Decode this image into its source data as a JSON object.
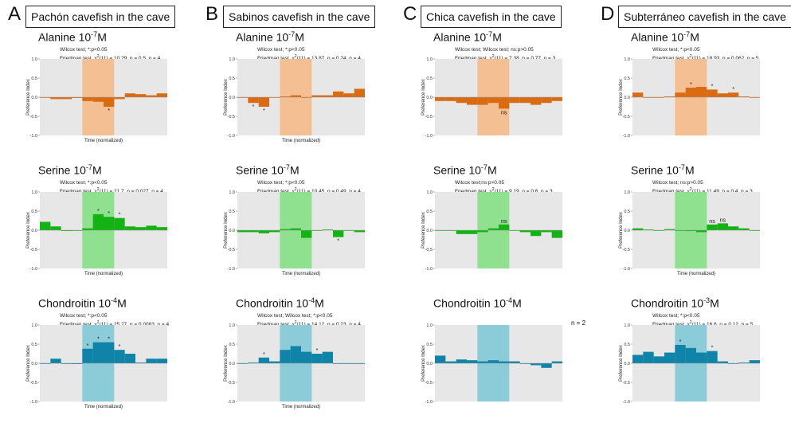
{
  "colors": {
    "alanine": "#d96b12",
    "serine": "#15b215",
    "chondroitin": "#0f83a8",
    "highlight_alanine": "#f5bf94",
    "highlight_serine": "#8fe08f",
    "highlight_chondroitin": "#8cccd8",
    "panel_bg": "#e7e7e7",
    "zero_line": "#999999"
  },
  "columns": [
    {
      "letter": "A",
      "title": "Pachón cavefish in the cave",
      "panels": [
        {
          "substance": "alanine",
          "title_name": "Alanine 10",
          "title_exp": "-7",
          "title_unit": "M",
          "stats_line_1": "Wilcox test; *:p<0.05",
          "stats_line_2_pre": "Friedman test, χ",
          "stats_line_2_sup": "2",
          "stats_line_2_post": "(11) = 10.29, p = 0.5, n = 4",
          "n_note": "",
          "chart_data": {
            "type": "bar",
            "xlabel": "Time (normalized)",
            "ylabel": "Preference Index",
            "ylim": [
              -1.0,
              1.0
            ],
            "yticks": [
              "1.0",
              "0.5",
              "0.0",
              "-0.5",
              "-1.0"
            ],
            "highlight_bins": [
              4,
              7
            ],
            "values": [
              0.0,
              -0.05,
              -0.05,
              -0.02,
              -0.1,
              -0.12,
              -0.25,
              -0.05,
              0.1,
              0.08,
              0.05,
              0.1
            ],
            "labels": [
              "",
              "",
              "",
              "",
              "",
              "",
              "*",
              "",
              "",
              "",
              "",
              ""
            ]
          }
        },
        {
          "substance": "serine",
          "title_name": "Serine 10",
          "title_exp": "-7",
          "title_unit": "M",
          "stats_line_1": "Wilcox test; *:p<0.05",
          "stats_line_2_pre": "Friedman test, χ",
          "stats_line_2_sup": "2",
          "stats_line_2_post": "(11) = 21.7, p = 0.027, n = 4",
          "n_note": "",
          "chart_data": {
            "type": "bar",
            "xlabel": "Time (normalized)",
            "ylabel": "Preference Index",
            "ylim": [
              -1.0,
              1.0
            ],
            "yticks": [
              "1.0",
              "0.5",
              "0.0",
              "-0.5",
              "-1.0"
            ],
            "highlight_bins": [
              4,
              7
            ],
            "values": [
              0.22,
              0.1,
              -0.02,
              0.0,
              0.05,
              0.42,
              0.35,
              0.32,
              0.1,
              0.08,
              0.12,
              0.08
            ],
            "labels": [
              "",
              "",
              "",
              "",
              "",
              "*",
              "*",
              "*",
              "",
              "",
              "",
              ""
            ]
          }
        },
        {
          "substance": "chondroitin",
          "title_name": "Chondroitin 10",
          "title_exp": "-4",
          "title_unit": "M",
          "stats_line_1": "Wilcox test; *:p<0.05",
          "stats_line_2_pre": "Friedman test, χ",
          "stats_line_2_sup": "2",
          "stats_line_2_post": "(11) = 25.27, p = 0.0083, n = 4",
          "n_note": "",
          "chart_data": {
            "type": "bar",
            "xlabel": "Time (normalized)",
            "ylabel": "Preference Index",
            "ylim": [
              -1.0,
              1.0
            ],
            "yticks": [
              "1.0",
              "0.5",
              "0.0",
              "-0.5",
              "-1.0"
            ],
            "highlight_bins": [
              4,
              7
            ],
            "values": [
              0.0,
              0.12,
              0.0,
              -0.02,
              0.38,
              0.55,
              0.55,
              0.35,
              0.25,
              0.02,
              0.12,
              0.12
            ],
            "labels": [
              "",
              "",
              "",
              "",
              "*",
              "*",
              "*",
              "*",
              "",
              "",
              "",
              ""
            ]
          }
        }
      ]
    },
    {
      "letter": "B",
      "title": "Sabinos cavefish in the cave",
      "panels": [
        {
          "substance": "alanine",
          "title_name": "Alanine 10",
          "title_exp": "-7",
          "title_unit": "M",
          "stats_line_1": "Wilcox test; *:p<0.05",
          "stats_line_2_pre": "Friedman test, χ",
          "stats_line_2_sup": "2",
          "stats_line_2_post": "(11) = 13.87, p = 0.24, n = 4",
          "n_note": "",
          "chart_data": {
            "type": "bar",
            "xlabel": "Time (normalized)",
            "ylabel": "Preference Index",
            "ylim": [
              -1.0,
              1.0
            ],
            "yticks": [
              "1.0",
              "0.5",
              "0.0",
              "-0.5",
              "-1.0"
            ],
            "highlight_bins": [
              4,
              7
            ],
            "values": [
              0.0,
              -0.15,
              -0.25,
              0.0,
              0.02,
              0.05,
              0.0,
              0.05,
              0.05,
              0.15,
              0.1,
              0.22
            ],
            "labels": [
              "",
              "*",
              "*",
              "",
              "",
              "",
              "",
              "",
              "",
              "",
              "",
              ""
            ]
          }
        },
        {
          "substance": "serine",
          "title_name": "Serine 10",
          "title_exp": "-7",
          "title_unit": "M",
          "stats_line_1": "Wilcox test; *:p<0.05",
          "stats_line_2_pre": "Friedman test, χ",
          "stats_line_2_sup": "2",
          "stats_line_2_post": "(11) = 10.45, p = 0.49, n = 4",
          "n_note": "",
          "chart_data": {
            "type": "bar",
            "xlabel": "Time (normalized)",
            "ylabel": "Preference Index",
            "ylim": [
              -1.0,
              1.0
            ],
            "yticks": [
              "1.0",
              "0.5",
              "0.0",
              "-0.5",
              "-1.0"
            ],
            "highlight_bins": [
              4,
              7
            ],
            "values": [
              -0.05,
              -0.05,
              -0.08,
              -0.05,
              0.03,
              0.05,
              -0.2,
              0.0,
              0.02,
              -0.18,
              0.0,
              -0.05
            ],
            "labels": [
              "",
              "",
              "",
              "",
              "",
              "",
              "",
              "",
              "",
              "*",
              "",
              ""
            ]
          }
        },
        {
          "substance": "chondroitin",
          "title_name": "Chondroitin 10",
          "title_exp": "-4",
          "title_unit": "M",
          "stats_line_1": "Wilcox test; Wilcox test; *:p<0.05",
          "stats_line_2_pre": "Friedman test, χ",
          "stats_line_2_sup": "2",
          "stats_line_2_post": "(11) = 14.12, p = 0.23, n = 4",
          "n_note": "",
          "chart_data": {
            "type": "bar",
            "xlabel": "Time (normalized)",
            "ylabel": "Preference Index",
            "ylim": [
              -1.0,
              1.0
            ],
            "yticks": [
              "1.0",
              "0.5",
              "0.0",
              "-0.5",
              "-1.0"
            ],
            "highlight_bins": [
              4,
              7
            ],
            "values": [
              0.0,
              0.02,
              0.15,
              0.05,
              0.35,
              0.45,
              0.3,
              0.25,
              0.3,
              0.0,
              0.0,
              0.0
            ],
            "labels": [
              "",
              "",
              "*",
              "",
              "",
              "",
              "",
              "*",
              "",
              "",
              "",
              ""
            ]
          }
        }
      ]
    },
    {
      "letter": "C",
      "title": "Chica cavefish in the cave",
      "panels": [
        {
          "substance": "alanine",
          "title_name": "Alanine 10",
          "title_exp": "-7",
          "title_unit": "M",
          "stats_line_1": "Wilcox test; Wilcox test; ns:p>0.05",
          "stats_line_2_pre": "Friedman test, χ",
          "stats_line_2_sup": "2",
          "stats_line_2_post": "(11) = 7.38, p = 0.77, n = 3",
          "n_note": "",
          "chart_data": {
            "type": "bar",
            "xlabel": "",
            "ylabel": "Preference Index",
            "ylim": [
              -1.0,
              1.0
            ],
            "yticks": [
              "1.0",
              "0.5",
              "0.0",
              "-0.5",
              "-1.0"
            ],
            "highlight_bins": [
              4,
              7
            ],
            "values": [
              -0.1,
              -0.1,
              -0.15,
              -0.2,
              -0.2,
              -0.15,
              -0.3,
              -0.15,
              -0.15,
              -0.2,
              -0.15,
              -0.1
            ],
            "labels": [
              "",
              "",
              "",
              "",
              "",
              "",
              "ns",
              "",
              "",
              "",
              "",
              ""
            ]
          }
        },
        {
          "substance": "serine",
          "title_name": "Serine 10",
          "title_exp": "-7",
          "title_unit": "M",
          "stats_line_1": "Wilcox test;ns:p>0.05",
          "stats_line_2_pre": "Friedman test, χ",
          "stats_line_2_sup": "2",
          "stats_line_2_post": "(11) = 9.19, p = 0.6, n = 3",
          "n_note": "",
          "chart_data": {
            "type": "bar",
            "xlabel": "",
            "ylabel": "Preference Index",
            "ylim": [
              -1.0,
              1.0
            ],
            "yticks": [
              "1.0",
              "0.5",
              "0.0",
              "-0.5",
              "-1.0"
            ],
            "highlight_bins": [
              4,
              7
            ],
            "values": [
              0.0,
              0.0,
              -0.1,
              -0.1,
              -0.05,
              0.05,
              0.15,
              0.0,
              -0.05,
              -0.15,
              -0.05,
              -0.2
            ],
            "labels": [
              "",
              "",
              "",
              "",
              "",
              "",
              "ns",
              "",
              "",
              "",
              "",
              ""
            ]
          }
        },
        {
          "substance": "chondroitin",
          "title_name": "Chondroitin 10",
          "title_exp": "-4",
          "title_unit": "M",
          "stats_line_1": "",
          "stats_line_2_pre": "",
          "stats_line_2_sup": "",
          "stats_line_2_post": "",
          "n_note": "n = 2",
          "chart_data": {
            "type": "bar",
            "xlabel": "",
            "ylabel": "Preference Index",
            "ylim": [
              -1.0,
              1.0
            ],
            "yticks": [
              "1.0",
              "0.5",
              "0.0",
              "-0.5",
              "-1.0"
            ],
            "highlight_bins": [
              4,
              7
            ],
            "values": [
              0.2,
              0.05,
              0.1,
              0.08,
              0.05,
              0.08,
              0.05,
              0.05,
              0.0,
              -0.05,
              -0.12,
              0.05
            ],
            "labels": [
              "",
              "",
              "",
              "",
              "",
              "",
              "",
              "",
              "",
              "",
              "",
              ""
            ]
          }
        }
      ]
    },
    {
      "letter": "D",
      "title": "Subterráneo cavefish in the cave",
      "panels": [
        {
          "substance": "alanine",
          "title_name": "Alanine 10",
          "title_exp": "-7",
          "title_unit": "M",
          "stats_line_1": "Wilcox test; *:p<0.05",
          "stats_line_2_pre": "Friedman test, χ",
          "stats_line_2_sup": "2",
          "stats_line_2_post": "(11) = 18.93, p = 0.062, n = 5",
          "n_note": "",
          "chart_data": {
            "type": "bar",
            "xlabel": "",
            "ylabel": "Preference Index",
            "ylim": [
              -1.0,
              1.0
            ],
            "yticks": [
              "1.0",
              "0.5",
              "0.0",
              "-0.5",
              "-1.0"
            ],
            "highlight_bins": [
              4,
              7
            ],
            "values": [
              0.12,
              0.0,
              0.0,
              0.02,
              0.12,
              0.25,
              0.27,
              0.2,
              0.1,
              0.12,
              0.02,
              0.0
            ],
            "labels": [
              "",
              "",
              "",
              "",
              "",
              "*",
              "",
              "*",
              "",
              "*",
              "",
              ""
            ]
          }
        },
        {
          "substance": "serine",
          "title_name": "Serine 10",
          "title_exp": "-7",
          "title_unit": "M",
          "stats_line_1": "Wilcox test; ns:p>0.05",
          "stats_line_2_pre": "Friedman test, χ",
          "stats_line_2_sup": "2",
          "stats_line_2_post": "(11) = 11.49, p = 0.4, n = 3",
          "n_note": "",
          "chart_data": {
            "type": "bar",
            "xlabel": "Time (normalized)",
            "ylabel": "Preference Index",
            "ylim": [
              -1.0,
              1.0
            ],
            "yticks": [
              "1.0",
              "0.5",
              "0.0",
              "-0.5",
              "-1.0"
            ],
            "highlight_bins": [
              4,
              7
            ],
            "values": [
              0.05,
              0.02,
              0.0,
              0.03,
              0.0,
              -0.02,
              -0.05,
              0.15,
              0.18,
              0.1,
              0.05,
              0.0
            ],
            "labels": [
              "",
              "",
              "",
              "",
              "",
              "",
              "",
              "ns",
              "ns",
              "",
              "",
              ""
            ]
          }
        },
        {
          "substance": "chondroitin",
          "title_name": "Chondroitin 10",
          "title_exp": "-3",
          "title_unit": "M",
          "stats_line_1": "Wilcox test; *:p<0.05",
          "stats_line_2_pre": "Friedman test, χ",
          "stats_line_2_sup": "2",
          "stats_line_2_post": "(11) = 16.6, p = 0.12, n = 5",
          "n_note": "",
          "chart_data": {
            "type": "bar",
            "xlabel": "",
            "ylabel": "Preference Index",
            "ylim": [
              -1.0,
              1.0
            ],
            "yticks": [
              "1.0",
              "0.5",
              "0.0",
              "-0.5",
              "-1.0"
            ],
            "highlight_bins": [
              4,
              7
            ],
            "values": [
              0.22,
              0.3,
              0.18,
              0.28,
              0.48,
              0.4,
              0.28,
              0.32,
              0.05,
              0.0,
              0.02,
              0.08
            ],
            "labels": [
              "",
              "",
              "",
              "",
              "*",
              "",
              "",
              "*",
              "",
              "",
              "",
              ""
            ]
          }
        }
      ]
    }
  ]
}
